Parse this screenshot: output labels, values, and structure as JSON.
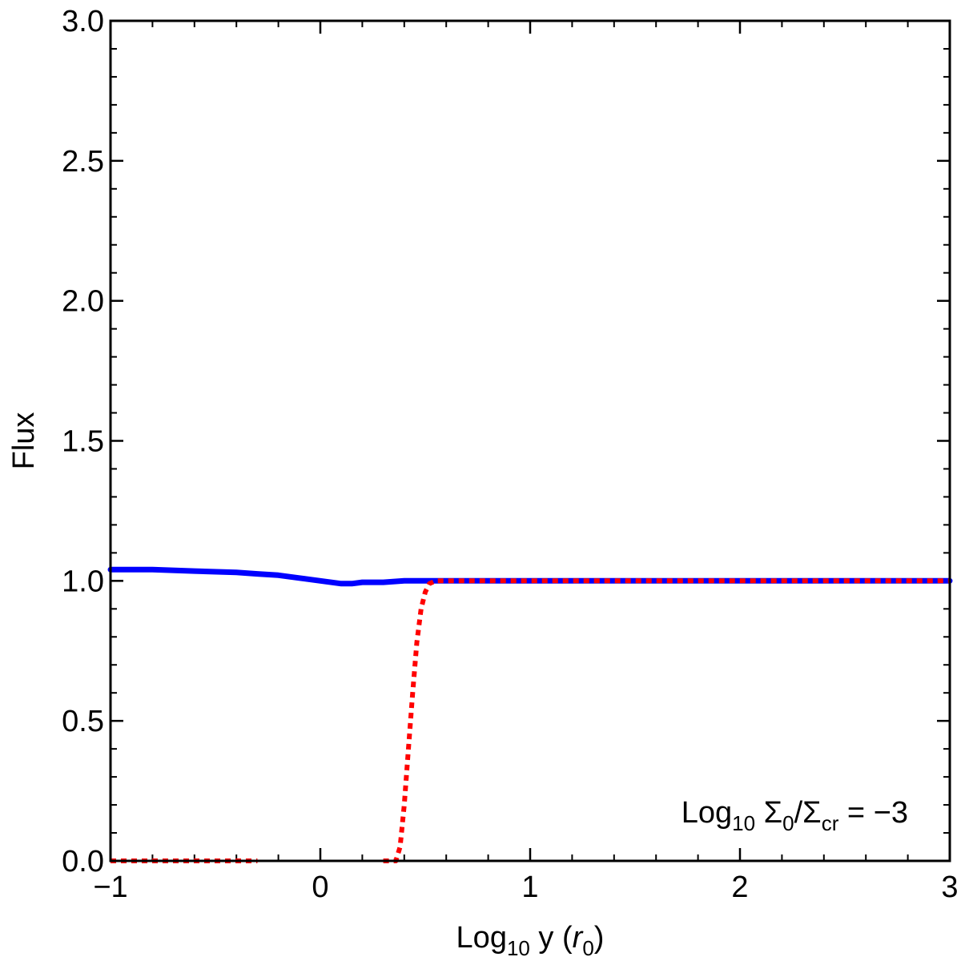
{
  "chart_data": {
    "type": "line",
    "title": "",
    "xlabel": {
      "prefix": "Log",
      "sub": "10",
      "middle": " y (",
      "italic": "r",
      "italic_sub": "0",
      "suffix": ")"
    },
    "ylabel": "Flux",
    "xlim": [
      -1,
      3
    ],
    "ylim": [
      0,
      3
    ],
    "x_ticks": [
      {
        "value": -1,
        "label": "−1"
      },
      {
        "value": 0,
        "label": "0"
      },
      {
        "value": 1,
        "label": "1"
      },
      {
        "value": 2,
        "label": "2"
      },
      {
        "value": 3,
        "label": "3"
      }
    ],
    "y_ticks": [
      {
        "value": 0,
        "label": "0.0"
      },
      {
        "value": 0.5,
        "label": "0.5"
      },
      {
        "value": 1.0,
        "label": "1.0"
      },
      {
        "value": 1.5,
        "label": "1.5"
      },
      {
        "value": 2.0,
        "label": "2.0"
      },
      {
        "value": 2.5,
        "label": "2.5"
      },
      {
        "value": 3.0,
        "label": "3.0"
      }
    ],
    "x_minor_step": 0.2,
    "y_minor_step": 0.1,
    "grid": false,
    "annotation": {
      "prefix": "Log",
      "sub1": "10",
      "mid1": " Σ",
      "sub2": "0",
      "mid2": "/Σ",
      "sub3": "cr",
      "suffix": " = −3"
    },
    "series": [
      {
        "style": "solid",
        "color": "#0000ff",
        "x": [
          -1.0,
          -0.8,
          -0.6,
          -0.4,
          -0.3,
          -0.2,
          -0.1,
          0.0,
          0.1,
          0.15,
          0.2,
          0.3,
          0.4,
          0.5,
          0.55,
          1.0,
          2.0,
          3.0
        ],
        "y": [
          1.04,
          1.04,
          1.035,
          1.03,
          1.025,
          1.02,
          1.01,
          1.0,
          0.99,
          0.99,
          0.995,
          0.995,
          1.0,
          1.0,
          1.0,
          1.0,
          1.0,
          1.0
        ]
      },
      {
        "style": "dotted",
        "color": "#ff0000",
        "segments": [
          {
            "x": [
              -1.0,
              -0.3
            ],
            "y": [
              0.0,
              0.0
            ]
          },
          {
            "x": [
              0.3,
              0.36,
              0.38,
              0.4,
              0.42,
              0.44,
              0.46,
              0.48,
              0.5,
              0.52,
              0.55,
              0.6,
              1.0,
              2.0,
              3.0
            ],
            "y": [
              0.0,
              0.0,
              0.05,
              0.2,
              0.4,
              0.6,
              0.78,
              0.9,
              0.96,
              0.99,
              1.0,
              1.0,
              1.0,
              1.0,
              1.0
            ]
          }
        ]
      }
    ]
  }
}
